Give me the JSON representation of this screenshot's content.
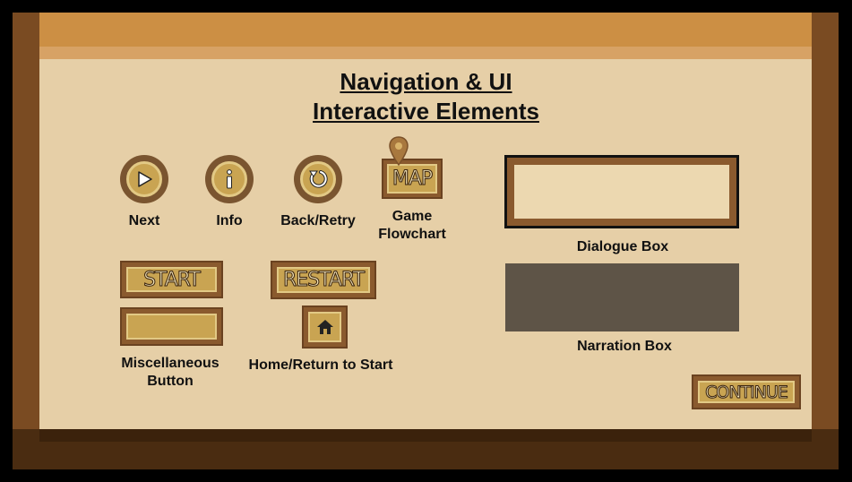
{
  "title": {
    "line1": "Navigation & UI",
    "line2": "Interactive Elements"
  },
  "icons": {
    "next": "play-arrow-icon",
    "info": "info-icon",
    "back": "retry-arrow-icon",
    "map_pin": "map-pin-icon",
    "home": "home-icon"
  },
  "buttons": {
    "next_label": "Next",
    "info_label": "Info",
    "back_label": "Back/Retry",
    "map_text": "MAP",
    "map_label_line1": "Game",
    "map_label_line2": "Flowchart",
    "start_text": "START",
    "restart_text": "RESTART",
    "misc_label_line1": "Miscellaneous",
    "misc_label_line2": "Button",
    "home_label": "Home/Return to Start",
    "continue_text": "CONTINUE"
  },
  "boxes": {
    "dialogue_label": "Dialogue Box",
    "narration_label": "Narration Box"
  },
  "colors": {
    "background": "#e6cfa7",
    "wood_dark": "#7a4b22",
    "wood_top": "#cc8f44",
    "button_gold": "#c9a452",
    "narration_gray": "#5e5447"
  }
}
